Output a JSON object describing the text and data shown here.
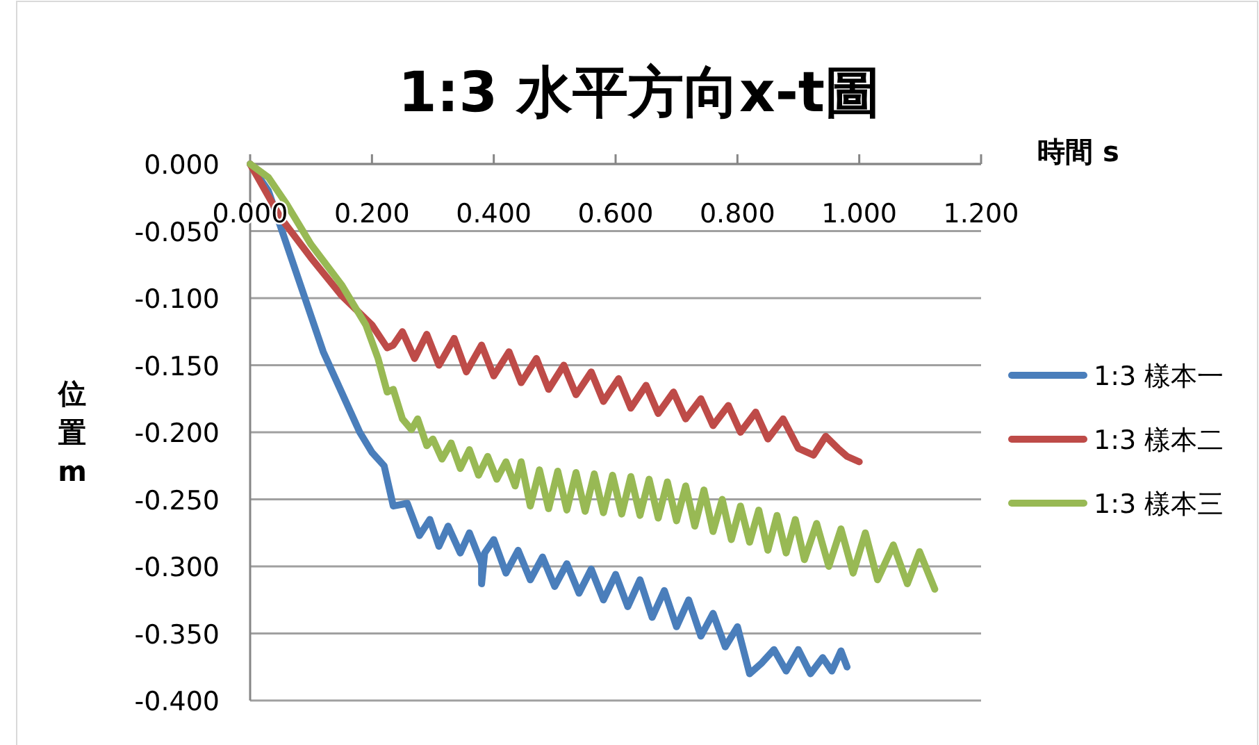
{
  "chart_data": {
    "type": "line",
    "title": "1:3 水平方向x-t圖",
    "xlabel": "時間 s",
    "ylabel": "位置m",
    "legend": "right",
    "grid": "y",
    "marker": "none",
    "line_style": "solid",
    "xlim": [
      0,
      1.2
    ],
    "ylim": [
      -0.4,
      0
    ],
    "xticks": [
      {
        "value": 0,
        "label": "0.000"
      },
      {
        "value": 0.2,
        "label": "0.200"
      },
      {
        "value": 0.4,
        "label": "0.400"
      },
      {
        "value": 0.6,
        "label": "0.600"
      },
      {
        "value": 0.8,
        "label": "0.800"
      },
      {
        "value": 1.0,
        "label": "1.000"
      },
      {
        "value": 1.2,
        "label": "1.200"
      }
    ],
    "yticks": [
      {
        "value": 0,
        "label": "0.000"
      },
      {
        "value": -0.05,
        "label": "-0.050"
      },
      {
        "value": -0.1,
        "label": "-0.100"
      },
      {
        "value": -0.15,
        "label": "-0.150"
      },
      {
        "value": -0.2,
        "label": "-0.200"
      },
      {
        "value": -0.25,
        "label": "-0.250"
      },
      {
        "value": -0.3,
        "label": "-0.300"
      },
      {
        "value": -0.35,
        "label": "-0.350"
      },
      {
        "value": -0.4,
        "label": "-0.400"
      }
    ],
    "series": [
      {
        "name": "1:3 樣本一",
        "color": "#4a7ebb",
        "x": [
          0,
          0.03,
          0.06,
          0.09,
          0.12,
          0.15,
          0.18,
          0.2,
          0.22,
          0.235,
          0.258,
          0.278,
          0.295,
          0.31,
          0.325,
          0.345,
          0.36,
          0.38,
          0.38,
          0.385,
          0.4,
          0.42,
          0.44,
          0.46,
          0.48,
          0.5,
          0.52,
          0.54,
          0.56,
          0.58,
          0.6,
          0.62,
          0.64,
          0.66,
          0.68,
          0.7,
          0.72,
          0.74,
          0.76,
          0.78,
          0.8,
          0.82,
          0.84,
          0.86,
          0.88,
          0.9,
          0.92,
          0.94,
          0.955,
          0.97,
          0.98
        ],
        "values": [
          0,
          -0.02,
          -0.06,
          -0.1,
          -0.14,
          -0.17,
          -0.2,
          -0.215,
          -0.225,
          -0.255,
          -0.253,
          -0.277,
          -0.265,
          -0.285,
          -0.27,
          -0.29,
          -0.275,
          -0.298,
          -0.313,
          -0.29,
          -0.28,
          -0.305,
          -0.288,
          -0.31,
          -0.293,
          -0.315,
          -0.298,
          -0.32,
          -0.302,
          -0.325,
          -0.306,
          -0.33,
          -0.31,
          -0.338,
          -0.318,
          -0.345,
          -0.325,
          -0.352,
          -0.335,
          -0.36,
          -0.345,
          -0.38,
          -0.372,
          -0.362,
          -0.378,
          -0.362,
          -0.38,
          -0.368,
          -0.378,
          -0.363,
          -0.375
        ]
      },
      {
        "name": "1:3 樣本二",
        "color": "#be4b48",
        "x": [
          0,
          0.05,
          0.1,
          0.15,
          0.2,
          0.225,
          0.235,
          0.25,
          0.27,
          0.29,
          0.31,
          0.335,
          0.355,
          0.38,
          0.4,
          0.425,
          0.445,
          0.47,
          0.49,
          0.515,
          0.535,
          0.56,
          0.58,
          0.605,
          0.625,
          0.65,
          0.67,
          0.695,
          0.715,
          0.74,
          0.76,
          0.785,
          0.805,
          0.83,
          0.85,
          0.875,
          0.9,
          0.925,
          0.945,
          0.965,
          0.98,
          1.0
        ],
        "values": [
          0,
          -0.04,
          -0.07,
          -0.098,
          -0.12,
          -0.137,
          -0.135,
          -0.125,
          -0.145,
          -0.127,
          -0.15,
          -0.13,
          -0.155,
          -0.135,
          -0.158,
          -0.14,
          -0.163,
          -0.145,
          -0.168,
          -0.15,
          -0.172,
          -0.155,
          -0.177,
          -0.16,
          -0.182,
          -0.165,
          -0.186,
          -0.17,
          -0.19,
          -0.175,
          -0.195,
          -0.18,
          -0.2,
          -0.185,
          -0.205,
          -0.19,
          -0.212,
          -0.217,
          -0.203,
          -0.212,
          -0.218,
          -0.222
        ]
      },
      {
        "name": "1:3 樣本三",
        "color": "#98b954",
        "x": [
          0,
          0.03,
          0.06,
          0.1,
          0.15,
          0.19,
          0.21,
          0.225,
          0.235,
          0.25,
          0.265,
          0.275,
          0.29,
          0.3,
          0.315,
          0.33,
          0.345,
          0.36,
          0.375,
          0.39,
          0.405,
          0.42,
          0.435,
          0.445,
          0.46,
          0.475,
          0.49,
          0.505,
          0.52,
          0.535,
          0.55,
          0.565,
          0.58,
          0.595,
          0.61,
          0.625,
          0.64,
          0.655,
          0.67,
          0.685,
          0.7,
          0.715,
          0.73,
          0.745,
          0.76,
          0.775,
          0.79,
          0.805,
          0.82,
          0.835,
          0.85,
          0.865,
          0.88,
          0.895,
          0.91,
          0.93,
          0.95,
          0.97,
          0.99,
          1.01,
          1.03,
          1.056,
          1.079,
          1.099,
          1.124
        ],
        "values": [
          0,
          -0.01,
          -0.03,
          -0.06,
          -0.09,
          -0.12,
          -0.145,
          -0.17,
          -0.168,
          -0.19,
          -0.198,
          -0.19,
          -0.21,
          -0.205,
          -0.22,
          -0.208,
          -0.227,
          -0.213,
          -0.232,
          -0.218,
          -0.235,
          -0.222,
          -0.24,
          -0.222,
          -0.255,
          -0.228,
          -0.257,
          -0.229,
          -0.258,
          -0.23,
          -0.259,
          -0.231,
          -0.26,
          -0.232,
          -0.261,
          -0.233,
          -0.262,
          -0.235,
          -0.264,
          -0.237,
          -0.266,
          -0.24,
          -0.27,
          -0.243,
          -0.274,
          -0.25,
          -0.28,
          -0.255,
          -0.282,
          -0.258,
          -0.288,
          -0.262,
          -0.29,
          -0.265,
          -0.295,
          -0.268,
          -0.3,
          -0.272,
          -0.305,
          -0.275,
          -0.31,
          -0.284,
          -0.313,
          -0.289,
          -0.317
        ]
      }
    ]
  }
}
